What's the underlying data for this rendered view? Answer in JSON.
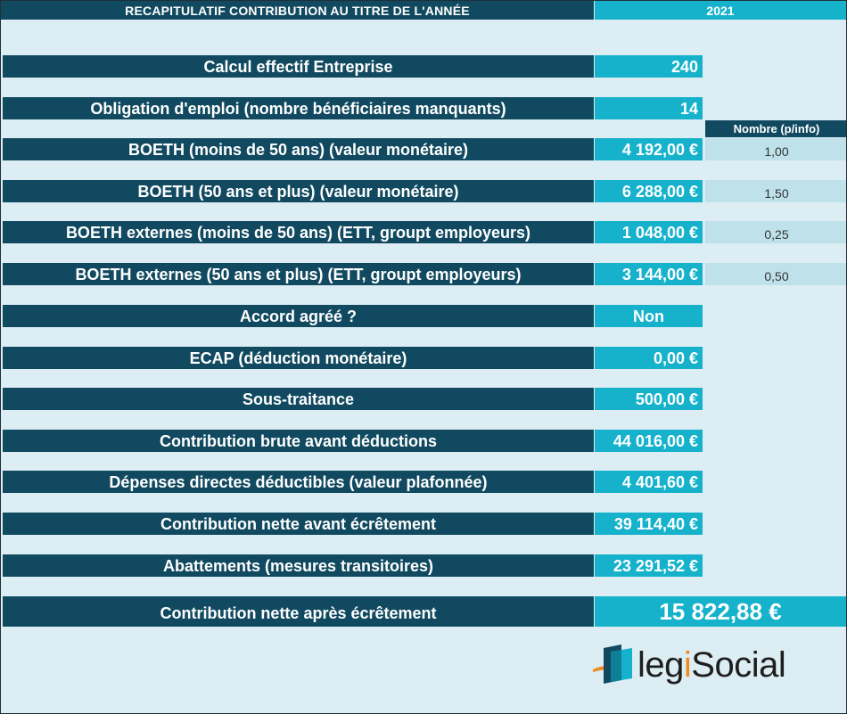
{
  "header": {
    "title": "RECAPITULATIF CONTRIBUTION AU TITRE DE L'ANNÉE",
    "year": "2021"
  },
  "info_header": "Nombre (p/info)",
  "rows": [
    {
      "label": "Calcul effectif Entreprise",
      "value": "240",
      "info": ""
    },
    {
      "label": "Obligation d'emploi (nombre bénéficiaires manquants)",
      "value": "14",
      "info": ""
    },
    {
      "label": "BOETH (moins de 50 ans) (valeur monétaire)",
      "value": "4 192,00 €",
      "info": "1,00"
    },
    {
      "label": "BOETH (50 ans et plus) (valeur monétaire)",
      "value": "6 288,00 €",
      "info": "1,50"
    },
    {
      "label": "BOETH  externes (moins de 50 ans) (ETT, groupt employeurs)",
      "value": "1 048,00 €",
      "info": "0,25"
    },
    {
      "label": "BOETH  externes (50 ans et plus) (ETT, groupt employeurs)",
      "value": "3 144,00 €",
      "info": "0,50"
    },
    {
      "label": "Accord agréé ?",
      "value": "Non",
      "info": ""
    },
    {
      "label": "ECAP (déduction monétaire)",
      "value": "0,00 €",
      "info": ""
    },
    {
      "label": "Sous-traitance",
      "value": "500,00 €",
      "info": ""
    },
    {
      "label": "Contribution brute avant déductions",
      "value": "44 016,00 €",
      "info": ""
    },
    {
      "label": "Dépenses directes déductibles (valeur plafonnée)",
      "value": "4 401,60 €",
      "info": ""
    },
    {
      "label": "Contribution nette avant écrêtement",
      "value": "39 114,40 €",
      "info": ""
    },
    {
      "label": "Abattements (mesures transitoires)",
      "value": "23 291,52 €",
      "info": ""
    }
  ],
  "final": {
    "label": "Contribution nette après écrêtement",
    "value": "15 822,88 €"
  },
  "logo": {
    "text_prefix": "leg",
    "text_o": "i",
    "text_suffix": "Social",
    "colors": {
      "orange": "#f08a1c",
      "blue": "#16b2cc",
      "navy": "#114a60"
    }
  },
  "colors": {
    "label_bg": "#114a60",
    "value_bg": "#16b2cc",
    "info_bg": "#bfe1ea",
    "page_bg": "#dcedf3"
  }
}
